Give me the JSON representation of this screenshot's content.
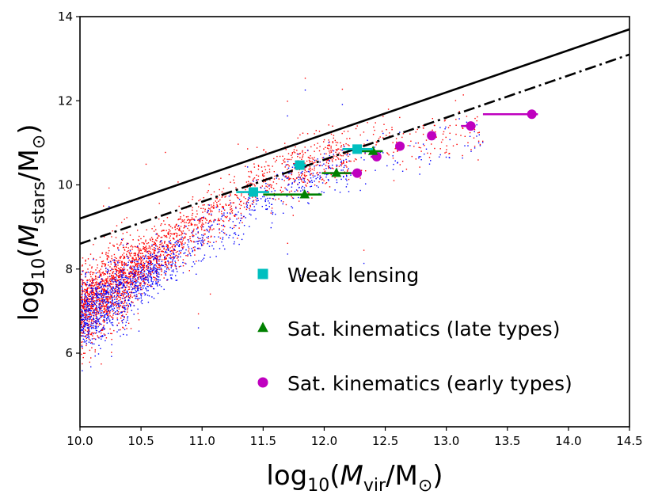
{
  "chart_data": {
    "type": "scatter",
    "xlabel": {
      "prefix": "log",
      "sub": "10",
      "open": "(",
      "var": "M",
      "var_sub": "vir",
      "slash": "/M",
      "sun_sub": "⊙",
      "close": ")"
    },
    "ylabel": {
      "prefix": "log",
      "sub": "10",
      "open": "(",
      "var": "M",
      "var_sub": "stars",
      "slash": "/M",
      "sun_sub": "⊙",
      "close": ")"
    },
    "xlim": [
      10.0,
      14.5
    ],
    "ylim": [
      4.25,
      14.0
    ],
    "xticks": [
      10.0,
      10.5,
      11.0,
      11.5,
      12.0,
      12.5,
      13.0,
      13.5,
      14.0,
      14.5
    ],
    "xtick_labels": [
      "10.0",
      "10.5",
      "11.0",
      "11.5",
      "12.0",
      "12.5",
      "13.0",
      "13.5",
      "14.0",
      "14.5"
    ],
    "yticks": [
      6,
      8,
      10,
      12,
      14
    ],
    "ytick_labels": [
      "6",
      "8",
      "10",
      "12",
      "14"
    ],
    "reference_lines": [
      {
        "name": "solid-line",
        "style": "solid",
        "color": "#000000",
        "points": [
          [
            10.0,
            9.2
          ],
          [
            14.5,
            13.7
          ]
        ]
      },
      {
        "name": "dash-dot-line",
        "style": "dashdot",
        "color": "#000000",
        "points": [
          [
            10.0,
            8.6
          ],
          [
            14.5,
            13.1
          ]
        ]
      }
    ],
    "scatter_background": {
      "series": [
        {
          "name": "red-galaxies",
          "color": "#ff0000",
          "approx_count": 2600
        },
        {
          "name": "blue-galaxies",
          "color": "#0000ff",
          "approx_count": 1400
        }
      ]
    },
    "series": [
      {
        "name": "Weak lensing",
        "marker": "square",
        "color": "#00bfbf",
        "points": [
          {
            "x": 11.42,
            "y": 9.83,
            "xlo": 11.28,
            "xhi": 11.55
          },
          {
            "x": 11.8,
            "y": 10.47,
            "xlo": 11.75,
            "xhi": 11.85
          },
          {
            "x": 12.27,
            "y": 10.85,
            "xlo": 12.15,
            "xhi": 12.4
          }
        ]
      },
      {
        "name": "Sat. kinematics (late types)",
        "marker": "triangle",
        "color": "#008000",
        "points": [
          {
            "x": 11.84,
            "y": 9.77,
            "xlo": 11.5,
            "xhi": 11.98
          },
          {
            "x": 12.1,
            "y": 10.28,
            "xlo": 11.98,
            "xhi": 12.22
          },
          {
            "x": 12.4,
            "y": 10.8,
            "xlo": 12.3,
            "xhi": 12.48
          }
        ]
      },
      {
        "name": "Sat. kinematics (early types)",
        "marker": "circle",
        "color": "#bf00bf",
        "points": [
          {
            "x": 12.27,
            "y": 10.28,
            "xlo": 12.05,
            "xhi": 12.3
          },
          {
            "x": 12.43,
            "y": 10.67,
            "xlo": 12.38,
            "xhi": 12.45
          },
          {
            "x": 12.62,
            "y": 10.92,
            "xlo": 12.6,
            "xhi": 12.64
          },
          {
            "x": 12.88,
            "y": 11.17,
            "xlo": 12.86,
            "xhi": 12.9
          },
          {
            "x": 13.2,
            "y": 11.4,
            "xlo": 13.12,
            "xhi": 13.24
          },
          {
            "x": 13.7,
            "y": 11.68,
            "xlo": 13.3,
            "xhi": 13.75
          }
        ]
      }
    ],
    "legend": {
      "position": "lower-center",
      "entries": [
        "Weak lensing",
        "Sat. kinematics (late types)",
        "Sat. kinematics (early types)"
      ]
    }
  }
}
